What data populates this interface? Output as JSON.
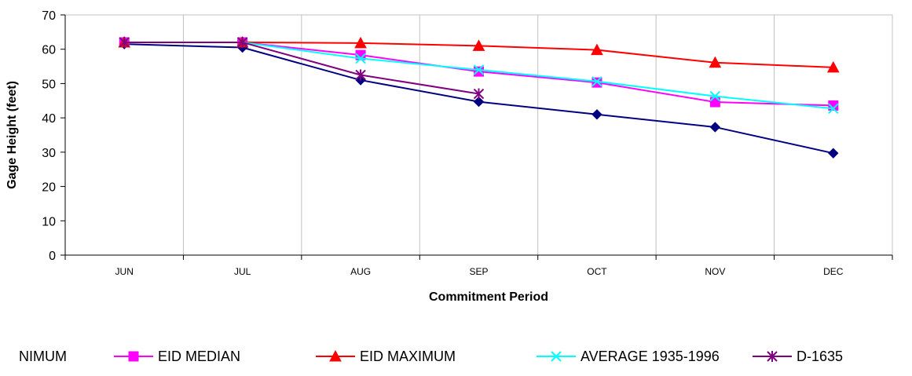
{
  "chart_data": {
    "type": "line",
    "title": "",
    "xlabel": "Commitment Period",
    "ylabel": "Gage Height (feet)",
    "categories": [
      "JUN",
      "JUL",
      "AUG",
      "SEP",
      "OCT",
      "NOV",
      "DEC"
    ],
    "ylim": [
      0,
      70
    ],
    "yticks": [
      0,
      10,
      20,
      30,
      40,
      50,
      60,
      70
    ],
    "grid": {
      "x": true,
      "y": false
    },
    "legend_position": "bottom",
    "series": [
      {
        "name": "EID MINIMUM",
        "legend_label": "NIMUM",
        "color": "#000080",
        "marker": "diamond",
        "values": [
          61.5,
          60.5,
          51.0,
          44.7,
          41.0,
          37.3,
          29.7
        ]
      },
      {
        "name": "EID MEDIAN",
        "legend_label": "EID MEDIAN",
        "color": "#FF00FF",
        "marker": "square",
        "values": [
          62.0,
          62.0,
          58.3,
          53.5,
          50.3,
          44.6,
          43.6
        ]
      },
      {
        "name": "EID MAXIMUM",
        "legend_label": "EID MAXIMUM",
        "color": "#FF0000",
        "marker": "triangle",
        "values": [
          62.0,
          62.0,
          61.8,
          61.0,
          59.8,
          56.1,
          54.7
        ]
      },
      {
        "name": "AVERAGE 1935-1996",
        "legend_label": "AVERAGE 1935-1996",
        "color": "#00FFFF",
        "marker": "x",
        "values": [
          62.0,
          62.0,
          57.3,
          54.0,
          50.6,
          46.3,
          42.7
        ]
      },
      {
        "name": "D-1635",
        "legend_label": "D-1635",
        "color": "#800080",
        "marker": "asterisk",
        "values": [
          62.0,
          62.0,
          52.5,
          47.0,
          null,
          null,
          null
        ]
      }
    ]
  }
}
